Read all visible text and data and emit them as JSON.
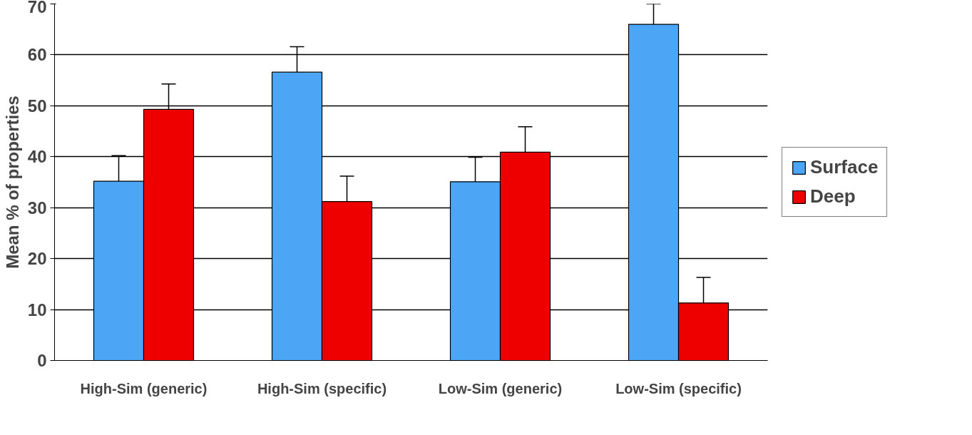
{
  "chart_data": {
    "type": "bar",
    "ylabel": "Mean % of properties",
    "categories": [
      "High-Sim (generic)",
      "High-Sim (specific)",
      "Low-Sim (generic)",
      "Low-Sim (specific)"
    ],
    "series": [
      {
        "name": "Surface",
        "color": "#4da6f5",
        "values": [
          35.2,
          56.6,
          35.1,
          66.0
        ],
        "errors": [
          [
            35.2,
            40.2
          ],
          [
            56.6,
            61.6
          ],
          [
            35.1,
            39.9
          ],
          [
            66.0,
            70
          ]
        ]
      },
      {
        "name": "Deep",
        "color": "#ee0000",
        "values": [
          49.3,
          31.2,
          40.9,
          11.3
        ],
        "errors": [
          [
            49.3,
            54.3
          ],
          [
            31.2,
            36.2
          ],
          [
            40.9,
            45.9
          ],
          [
            11.3,
            16.3
          ]
        ]
      }
    ],
    "ylim": [
      0,
      70
    ],
    "yticks": [
      0,
      10,
      20,
      30,
      40,
      50,
      60,
      70
    ],
    "grid": "y",
    "legend": "right"
  }
}
